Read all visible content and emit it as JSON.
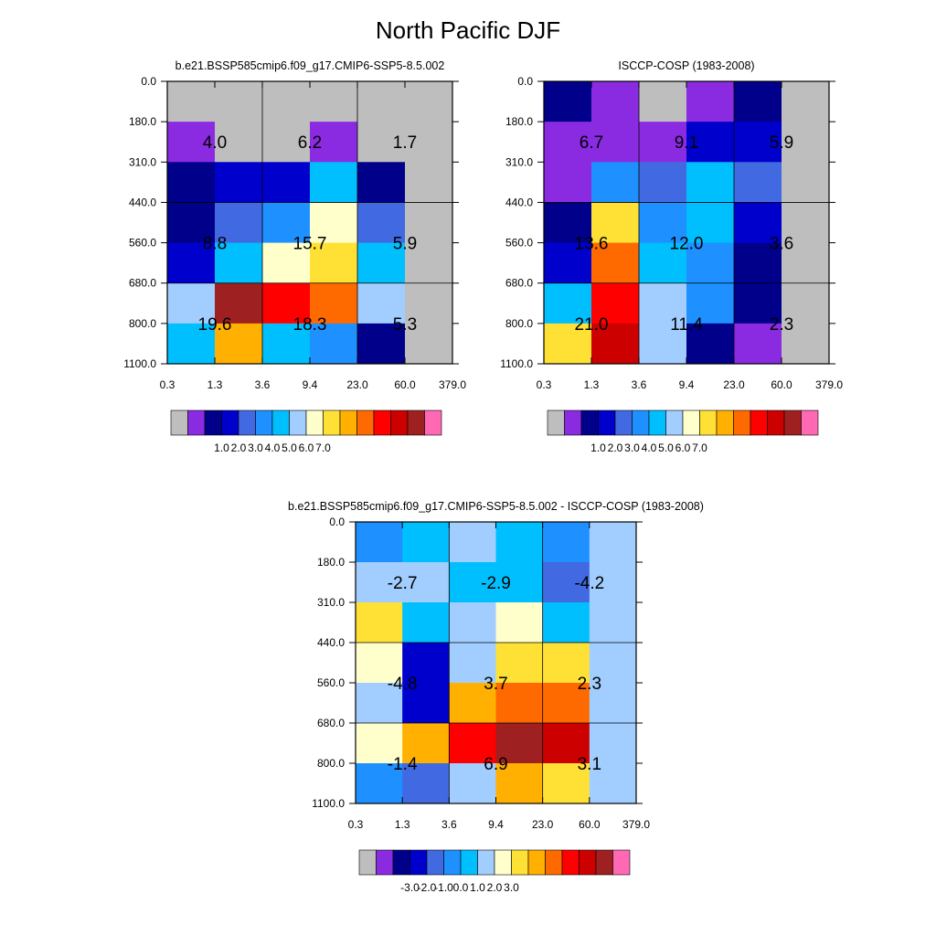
{
  "title": "North Pacific DJF",
  "colors": {
    "missing": "#BEBEBE",
    "axis": "#000000",
    "palette": [
      "#BEBEBE",
      "#8A2BE2",
      "#00008B",
      "#0000CD",
      "#4169E1",
      "#1E90FF",
      "#00BFFF",
      "#A2CDFF",
      "#FFFFCC",
      "#FFE135",
      "#FFB000",
      "#FF6A00",
      "#FF0000",
      "#CD0000",
      "#9E2020",
      "#FF69B4"
    ],
    "class_index": {
      "gray": 0,
      "purple": 1,
      "navy": 2,
      "blue": 3,
      "royal": 4,
      "dodger": 5,
      "sky": 6,
      "light": 7,
      "cream": 8,
      "yellow": 9,
      "orange": 10,
      "dkorange": 11,
      "red": 12,
      "crimson": 13,
      "brown": 14,
      "pink": 15
    }
  },
  "chart_data": [
    {
      "type": "heatmap",
      "title": "b.e21.BSSP585cmip6.f09_g17.CMIP6-SSP5-8.5.002",
      "x_ticks": [
        "0.3",
        "1.3",
        "3.6",
        "9.4",
        "23.0",
        "60.0",
        "379.0"
      ],
      "y_ticks": [
        "0.0",
        "180.0",
        "310.0",
        "440.0",
        "560.0",
        "680.0",
        "800.0",
        "1100.0"
      ],
      "cells": [
        [
          "gray",
          "gray",
          "gray",
          "gray",
          "gray",
          "gray"
        ],
        [
          "purple",
          "gray",
          "gray",
          "purple",
          "gray",
          "gray"
        ],
        [
          "navy",
          "blue",
          "blue",
          "sky",
          "navy",
          "gray"
        ],
        [
          "navy",
          "royal",
          "dodger",
          "cream",
          "royal",
          "gray"
        ],
        [
          "blue",
          "sky",
          "cream",
          "yellow",
          "sky",
          "gray"
        ],
        [
          "light",
          "brown",
          "red",
          "dkorange",
          "light",
          "gray"
        ],
        [
          "sky",
          "orange",
          "sky",
          "dodger",
          "navy",
          "gray"
        ]
      ],
      "annotations": [
        {
          "x": 1,
          "y": 1.5,
          "text": "4.0"
        },
        {
          "x": 3,
          "y": 1.5,
          "text": "6.2"
        },
        {
          "x": 5,
          "y": 1.5,
          "text": "1.7"
        },
        {
          "x": 1,
          "y": 4,
          "text": "8.8"
        },
        {
          "x": 3,
          "y": 4,
          "text": "15.7"
        },
        {
          "x": 5,
          "y": 4,
          "text": "5.9"
        },
        {
          "x": 1,
          "y": 6,
          "text": "19.6"
        },
        {
          "x": 3,
          "y": 6,
          "text": "18.3"
        },
        {
          "x": 5,
          "y": 6,
          "text": "5.3"
        }
      ],
      "legend": {
        "labels": [
          "1.0",
          "2.0",
          "3.0",
          "4.0",
          "5.0",
          "6.0",
          "7.0"
        ]
      }
    },
    {
      "type": "heatmap",
      "title": "ISCCP-COSP (1983-2008)",
      "x_ticks": [
        "0.3",
        "1.3",
        "3.6",
        "9.4",
        "23.0",
        "60.0",
        "379.0"
      ],
      "y_ticks": [
        "0.0",
        "180.0",
        "310.0",
        "440.0",
        "560.0",
        "680.0",
        "800.0",
        "1100.0"
      ],
      "cells": [
        [
          "navy",
          "purple",
          "gray",
          "purple",
          "navy",
          "gray"
        ],
        [
          "purple",
          "purple",
          "purple",
          "blue",
          "blue",
          "gray"
        ],
        [
          "purple",
          "dodger",
          "royal",
          "sky",
          "royal",
          "gray"
        ],
        [
          "navy",
          "yellow",
          "dodger",
          "sky",
          "blue",
          "gray"
        ],
        [
          "blue",
          "dkorange",
          "sky",
          "dodger",
          "navy",
          "gray"
        ],
        [
          "sky",
          "red",
          "light",
          "dodger",
          "navy",
          "gray"
        ],
        [
          "yellow",
          "crimson",
          "light",
          "navy",
          "purple",
          "gray"
        ]
      ],
      "annotations": [
        {
          "x": 1,
          "y": 1.5,
          "text": "6.7"
        },
        {
          "x": 3,
          "y": 1.5,
          "text": "9.1"
        },
        {
          "x": 5,
          "y": 1.5,
          "text": "5.9"
        },
        {
          "x": 1,
          "y": 4,
          "text": "13.6"
        },
        {
          "x": 3,
          "y": 4,
          "text": "12.0"
        },
        {
          "x": 5,
          "y": 4,
          "text": "3.6"
        },
        {
          "x": 1,
          "y": 6,
          "text": "21.0"
        },
        {
          "x": 3,
          "y": 6,
          "text": "11.4"
        },
        {
          "x": 5,
          "y": 6,
          "text": "2.3"
        }
      ],
      "legend": {
        "labels": [
          "1.0",
          "2.0",
          "3.0",
          "4.0",
          "5.0",
          "6.0",
          "7.0"
        ]
      }
    },
    {
      "type": "heatmap",
      "title": "b.e21.BSSP585cmip6.f09_g17.CMIP6-SSP5-8.5.002 - ISCCP-COSP (1983-2008)",
      "x_ticks": [
        "0.3",
        "1.3",
        "3.6",
        "9.4",
        "23.0",
        "60.0",
        "379.0"
      ],
      "y_ticks": [
        "0.0",
        "180.0",
        "310.0",
        "440.0",
        "560.0",
        "680.0",
        "800.0",
        "1100.0"
      ],
      "cells": [
        [
          "dodger",
          "sky",
          "light",
          "sky",
          "dodger",
          "light"
        ],
        [
          "light",
          "light",
          "sky",
          "sky",
          "royal",
          "light"
        ],
        [
          "yellow",
          "sky",
          "light",
          "cream",
          "sky",
          "light"
        ],
        [
          "cream",
          "blue",
          "light",
          "yellow",
          "yellow",
          "light"
        ],
        [
          "light",
          "blue",
          "orange",
          "dkorange",
          "dkorange",
          "light"
        ],
        [
          "cream",
          "orange",
          "red",
          "brown",
          "crimson",
          "light"
        ],
        [
          "dodger",
          "royal",
          "light",
          "orange",
          "yellow",
          "light"
        ]
      ],
      "annotations": [
        {
          "x": 1,
          "y": 1.5,
          "text": "-2.7"
        },
        {
          "x": 3,
          "y": 1.5,
          "text": "-2.9"
        },
        {
          "x": 5,
          "y": 1.5,
          "text": "-4.2"
        },
        {
          "x": 1,
          "y": 4,
          "text": "-4.8"
        },
        {
          "x": 3,
          "y": 4,
          "text": "3.7"
        },
        {
          "x": 5,
          "y": 4,
          "text": "2.3"
        },
        {
          "x": 1,
          "y": 6,
          "text": "-1.4"
        },
        {
          "x": 3,
          "y": 6,
          "text": "6.9"
        },
        {
          "x": 5,
          "y": 6,
          "text": "3.1"
        }
      ],
      "legend": {
        "labels": [
          "-3.0",
          "-2.0",
          "-1.0",
          "0.0",
          "1.0",
          "2.0",
          "3.0"
        ]
      }
    }
  ]
}
